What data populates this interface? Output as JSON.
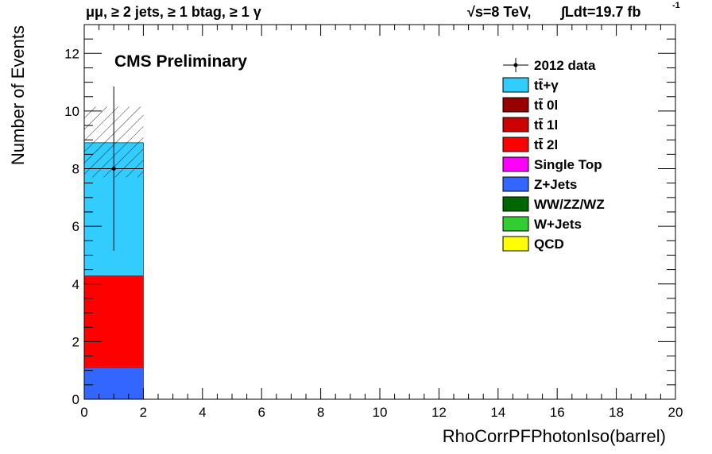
{
  "header": {
    "selection": "μμ, ≥ 2 jets, ≥ 1 btag, ≥ 1 γ",
    "energy": "√s=8 TeV,",
    "lumi": "∫Ldt=19.7 fb",
    "lumi_exp": "-1"
  },
  "label": "CMS Preliminary",
  "chart_data": {
    "type": "bar",
    "xlabel": "RhoCorrPFPhotonIso(barrel)",
    "ylabel": "Number of Events",
    "xlim": [
      0,
      20
    ],
    "ylim": [
      0,
      13
    ],
    "xticks": [
      0,
      2,
      4,
      6,
      8,
      10,
      12,
      14,
      16,
      18,
      20
    ],
    "yticks": [
      0,
      2,
      4,
      6,
      8,
      10,
      12
    ],
    "bins": [
      [
        0,
        2
      ]
    ],
    "stack": [
      {
        "name": "Z+Jets",
        "color": "#3366ff",
        "values": [
          1.08
        ]
      },
      {
        "name": "tt̄ 1l",
        "color": "#cc0000",
        "values": [
          0.07
        ]
      },
      {
        "name": "tt̄ 2l",
        "color": "#ff0000",
        "values": [
          3.15
        ]
      },
      {
        "name": "tt̄+γ",
        "color": "#33ccff",
        "values": [
          4.6
        ]
      }
    ],
    "uncertainty_band": {
      "low": [
        7.7
      ],
      "high": [
        10.15
      ]
    },
    "data": {
      "name": "2012 data",
      "x": [
        1
      ],
      "y": [
        8
      ],
      "yerr_low": [
        2.85
      ],
      "yerr_high": [
        2.85
      ]
    },
    "legend": [
      {
        "label": "2012 data",
        "kind": "marker",
        "color": "#000000"
      },
      {
        "label": "tt̄+γ",
        "kind": "box",
        "color": "#33ccff"
      },
      {
        "label": "tt̄ 0l",
        "kind": "box",
        "color": "#990000"
      },
      {
        "label": "tt̄ 1l",
        "kind": "box",
        "color": "#cc0000"
      },
      {
        "label": "tt̄ 2l",
        "kind": "box",
        "color": "#ff0000"
      },
      {
        "label": "Single Top",
        "kind": "box",
        "color": "#ff00ff"
      },
      {
        "label": "Z+Jets",
        "kind": "box",
        "color": "#3366ff"
      },
      {
        "label": "WW/ZZ/WZ",
        "kind": "box",
        "color": "#006600"
      },
      {
        "label": "W+Jets",
        "kind": "box",
        "color": "#33cc33"
      },
      {
        "label": "QCD",
        "kind": "box",
        "color": "#ffff00"
      }
    ],
    "legend_position": "top-right"
  }
}
